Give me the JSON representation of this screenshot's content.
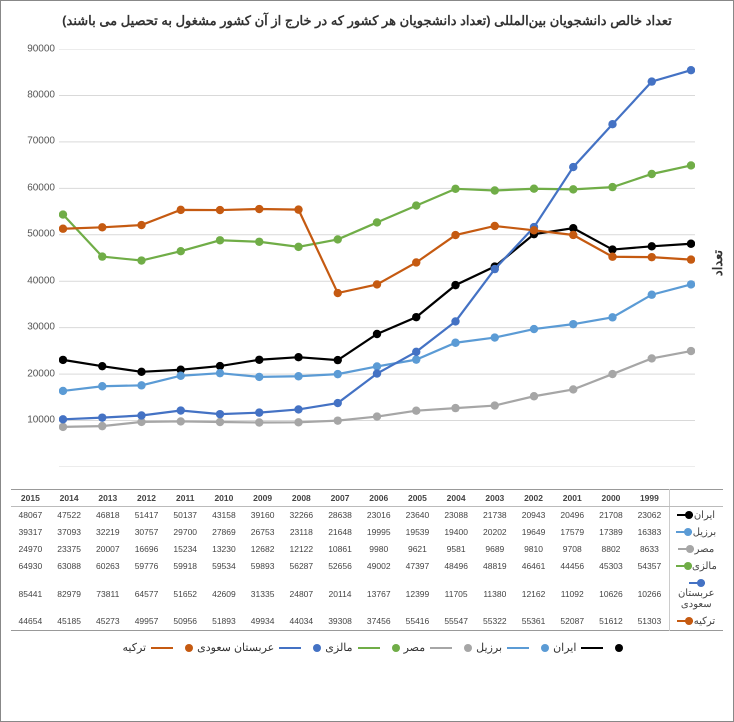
{
  "title": "تعداد خالص دانشجویان بین‌المللی (تعداد دانشجویان هر کشور که در خارج از آن کشور مشغول به تحصیل می باشند)",
  "ylabel": "تعداد",
  "chart": {
    "type": "line",
    "years": [
      1999,
      2000,
      2001,
      2002,
      2003,
      2004,
      2005,
      2006,
      2007,
      2008,
      2009,
      2010,
      2011,
      2012,
      2013,
      2014,
      2015
    ],
    "ylim": [
      0,
      90000
    ],
    "ytick_step": 10000,
    "background_color": "#ffffff",
    "grid_color": "#d9d9d9",
    "line_width": 2.2,
    "marker_size": 4.2,
    "series": [
      {
        "name": "ایران",
        "color": "#000000",
        "values": [
          23062,
          21708,
          20496,
          20943,
          21738,
          23088,
          23640,
          23016,
          28638,
          32266,
          39160,
          43158,
          50137,
          51417,
          46818,
          47522,
          48067
        ]
      },
      {
        "name": "برزیل",
        "color": "#5b9bd5",
        "values": [
          16383,
          17389,
          17579,
          19649,
          20202,
          19400,
          19539,
          19995,
          21648,
          23118,
          26753,
          27869,
          29700,
          30757,
          32219,
          37093,
          39317
        ]
      },
      {
        "name": "مصر",
        "color": "#a6a6a6",
        "values": [
          8633,
          8802,
          9708,
          9810,
          9689,
          9581,
          9621,
          9980,
          10861,
          12122,
          12682,
          13230,
          15234,
          16696,
          20007,
          23375,
          24970
        ]
      },
      {
        "name": "مالزی",
        "color": "#70ad47",
        "values": [
          54357,
          45303,
          44456,
          46461,
          48819,
          48496,
          47397,
          49002,
          52656,
          56287,
          59893,
          59534,
          59918,
          59776,
          60263,
          63088,
          64930
        ]
      },
      {
        "name": "عربستان سعودی",
        "color": "#4472c4",
        "values": [
          10266,
          10626,
          11092,
          12162,
          11380,
          11705,
          12399,
          13767,
          20114,
          24807,
          31335,
          42609,
          51652,
          64577,
          73811,
          82979,
          85441
        ]
      },
      {
        "name": "ترکیه",
        "color": "#c55a11",
        "values": [
          51303,
          51612,
          52087,
          55361,
          55322,
          55547,
          55416,
          37456,
          39308,
          44034,
          49934,
          51893,
          50956,
          49957,
          45273,
          45185,
          44654
        ]
      }
    ]
  }
}
